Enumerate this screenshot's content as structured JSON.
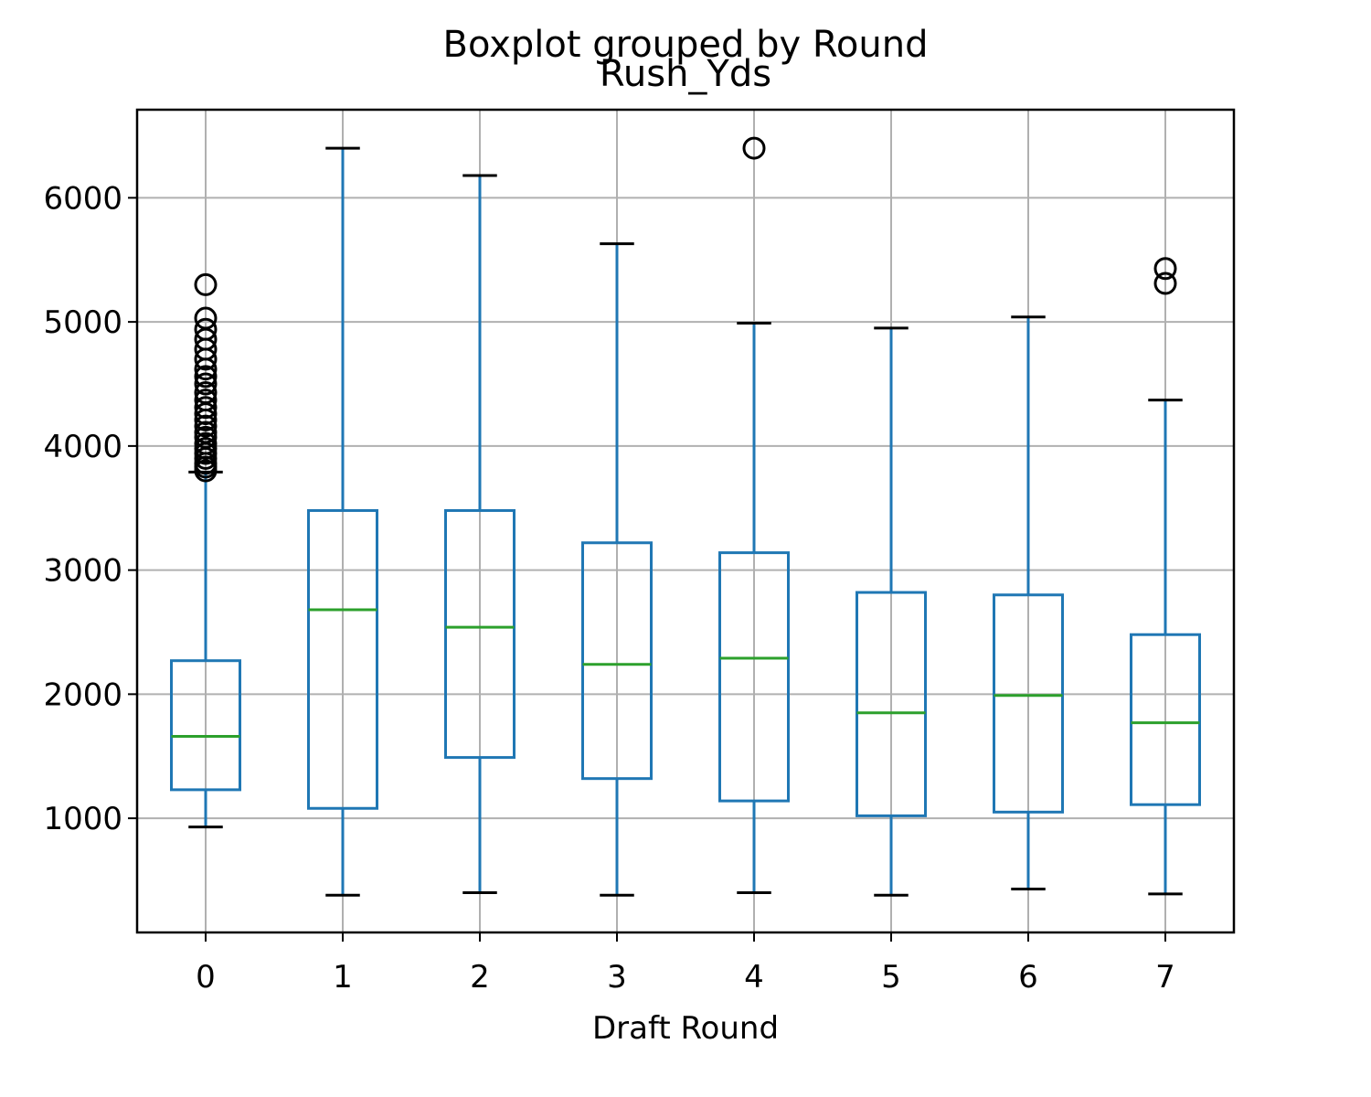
{
  "chart_data": {
    "type": "box",
    "suptitle": "Boxplot grouped by Round",
    "title": "Rush_Yds",
    "xlabel": "Draft Round",
    "ylabel": "",
    "categories": [
      "0",
      "1",
      "2",
      "3",
      "4",
      "5",
      "6",
      "7"
    ],
    "yticks": [
      1000,
      2000,
      3000,
      4000,
      5000,
      6000
    ],
    "ylim": [
      80,
      6710
    ],
    "grid": true,
    "colors": {
      "box": "#1f77b4",
      "median": "#2ca02c",
      "whisker_cap": "#000000",
      "flier": "#000000",
      "grid": "#b0b0b0"
    },
    "boxes": [
      {
        "category": "0",
        "whisker_low": 930,
        "q1": 1230,
        "median": 1660,
        "q3": 2270,
        "whisker_high": 3790,
        "fliers": [
          3800,
          3830,
          3860,
          3900,
          3940,
          3980,
          4020,
          4070,
          4110,
          4160,
          4210,
          4260,
          4310,
          4370,
          4430,
          4500,
          4560,
          4620,
          4700,
          4780,
          4860,
          4940,
          5030,
          5300
        ]
      },
      {
        "category": "1",
        "whisker_low": 380,
        "q1": 1080,
        "median": 2680,
        "q3": 3480,
        "whisker_high": 6400,
        "fliers": []
      },
      {
        "category": "2",
        "whisker_low": 400,
        "q1": 1490,
        "median": 2540,
        "q3": 3480,
        "whisker_high": 6180,
        "fliers": []
      },
      {
        "category": "3",
        "whisker_low": 380,
        "q1": 1320,
        "median": 2240,
        "q3": 3220,
        "whisker_high": 5630,
        "fliers": []
      },
      {
        "category": "4",
        "whisker_low": 400,
        "q1": 1140,
        "median": 2290,
        "q3": 3140,
        "whisker_high": 4990,
        "fliers": [
          6400
        ]
      },
      {
        "category": "5",
        "whisker_low": 380,
        "q1": 1020,
        "median": 1850,
        "q3": 2820,
        "whisker_high": 4950,
        "fliers": []
      },
      {
        "category": "6",
        "whisker_low": 430,
        "q1": 1050,
        "median": 1990,
        "q3": 2800,
        "whisker_high": 5040,
        "fliers": []
      },
      {
        "category": "7",
        "whisker_low": 390,
        "q1": 1110,
        "median": 1770,
        "q3": 2480,
        "whisker_high": 4370,
        "fliers": [
          5310,
          5430
        ]
      }
    ]
  }
}
